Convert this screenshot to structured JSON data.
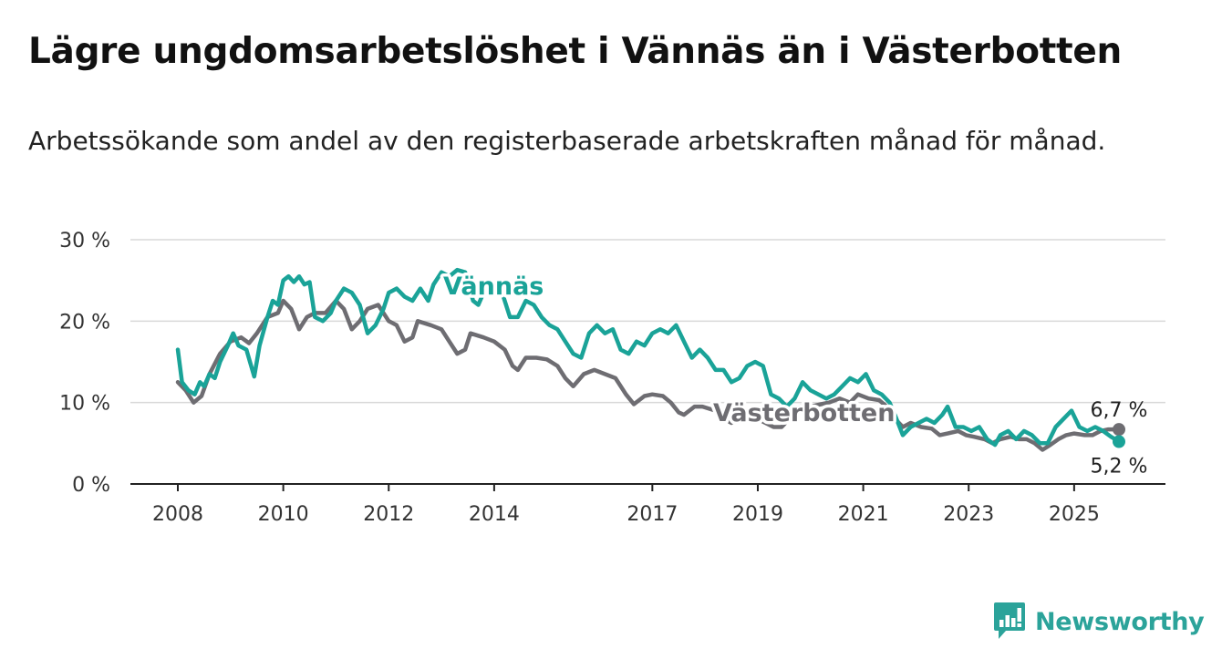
{
  "title": "Lägre ungdomsarbetslöshet i Vännäs än i Västerbotten",
  "subtitle": "Arbetssökande som andel av den registerbaserade arbetskraften månad för månad.",
  "logo": {
    "text": "Newsworthy",
    "color": "#2ba39a"
  },
  "chart_data": {
    "type": "line",
    "ylim": [
      0,
      30
    ],
    "xlim": [
      2008,
      2025.85
    ],
    "y_ticks": [
      {
        "value": 0,
        "label": "0 %"
      },
      {
        "value": 10,
        "label": "10 %"
      },
      {
        "value": 20,
        "label": "20 %"
      },
      {
        "value": 30,
        "label": "30 %"
      }
    ],
    "x_ticks": [
      {
        "value": 2008,
        "label": "2008"
      },
      {
        "value": 2010,
        "label": "2010"
      },
      {
        "value": 2012,
        "label": "2012"
      },
      {
        "value": 2014,
        "label": "2014"
      },
      {
        "value": 2017,
        "label": "2017"
      },
      {
        "value": 2019,
        "label": "2019"
      },
      {
        "value": 2021,
        "label": "2021"
      },
      {
        "value": 2023,
        "label": "2023"
      },
      {
        "value": 2025,
        "label": "2025"
      }
    ],
    "grid": true,
    "series": [
      {
        "name": "Västerbotten",
        "color": "#6e6d72",
        "end_label": "6,7 %",
        "points": [
          [
            2008.0,
            12.5
          ],
          [
            2008.15,
            11.5
          ],
          [
            2008.3,
            10.0
          ],
          [
            2008.45,
            10.8
          ],
          [
            2008.6,
            13.5
          ],
          [
            2008.8,
            16.0
          ],
          [
            2009.0,
            17.5
          ],
          [
            2009.2,
            18.0
          ],
          [
            2009.35,
            17.3
          ],
          [
            2009.5,
            18.5
          ],
          [
            2009.7,
            20.5
          ],
          [
            2009.9,
            21.0
          ],
          [
            2010.0,
            22.5
          ],
          [
            2010.15,
            21.5
          ],
          [
            2010.3,
            19.0
          ],
          [
            2010.45,
            20.5
          ],
          [
            2010.6,
            21.0
          ],
          [
            2010.8,
            21.0
          ],
          [
            2011.0,
            22.5
          ],
          [
            2011.15,
            21.5
          ],
          [
            2011.3,
            19.0
          ],
          [
            2011.45,
            20.0
          ],
          [
            2011.6,
            21.5
          ],
          [
            2011.8,
            22.0
          ],
          [
            2012.0,
            20.0
          ],
          [
            2012.15,
            19.5
          ],
          [
            2012.3,
            17.5
          ],
          [
            2012.45,
            18.0
          ],
          [
            2012.55,
            20.0
          ],
          [
            2012.8,
            19.5
          ],
          [
            2013.0,
            19.0
          ],
          [
            2013.15,
            17.5
          ],
          [
            2013.3,
            16.0
          ],
          [
            2013.45,
            16.5
          ],
          [
            2013.55,
            18.5
          ],
          [
            2013.8,
            18.0
          ],
          [
            2014.0,
            17.5
          ],
          [
            2014.2,
            16.5
          ],
          [
            2014.35,
            14.5
          ],
          [
            2014.45,
            14.0
          ],
          [
            2014.6,
            15.5
          ],
          [
            2014.8,
            15.5
          ],
          [
            2015.0,
            15.3
          ],
          [
            2015.2,
            14.5
          ],
          [
            2015.35,
            13.0
          ],
          [
            2015.5,
            12.0
          ],
          [
            2015.7,
            13.5
          ],
          [
            2015.9,
            14.0
          ],
          [
            2016.1,
            13.5
          ],
          [
            2016.3,
            13.0
          ],
          [
            2016.5,
            11.0
          ],
          [
            2016.65,
            9.8
          ],
          [
            2016.85,
            10.8
          ],
          [
            2017.0,
            11.0
          ],
          [
            2017.2,
            10.8
          ],
          [
            2017.35,
            10.0
          ],
          [
            2017.5,
            8.8
          ],
          [
            2017.6,
            8.5
          ],
          [
            2017.8,
            9.5
          ],
          [
            2017.95,
            9.5
          ],
          [
            2018.2,
            9.0
          ],
          [
            2018.35,
            8.0
          ],
          [
            2018.5,
            7.5
          ],
          [
            2018.7,
            8.5
          ],
          [
            2018.9,
            8.3
          ],
          [
            2019.05,
            7.8
          ],
          [
            2019.3,
            7.0
          ],
          [
            2019.45,
            7.0
          ],
          [
            2019.6,
            8.0
          ],
          [
            2019.8,
            9.5
          ],
          [
            2020.0,
            9.5
          ],
          [
            2020.2,
            9.8
          ],
          [
            2020.35,
            10.0
          ],
          [
            2020.55,
            10.5
          ],
          [
            2020.75,
            10.0
          ],
          [
            2020.9,
            11.0
          ],
          [
            2021.1,
            10.5
          ],
          [
            2021.3,
            10.3
          ],
          [
            2021.45,
            9.5
          ],
          [
            2021.6,
            8.0
          ],
          [
            2021.75,
            7.0
          ],
          [
            2021.9,
            7.5
          ],
          [
            2022.1,
            7.0
          ],
          [
            2022.3,
            6.8
          ],
          [
            2022.45,
            6.0
          ],
          [
            2022.6,
            6.2
          ],
          [
            2022.8,
            6.5
          ],
          [
            2022.95,
            6.0
          ],
          [
            2023.1,
            5.8
          ],
          [
            2023.3,
            5.5
          ],
          [
            2023.45,
            5.0
          ],
          [
            2023.6,
            5.5
          ],
          [
            2023.8,
            5.8
          ],
          [
            2023.95,
            5.5
          ],
          [
            2024.1,
            5.5
          ],
          [
            2024.25,
            5.0
          ],
          [
            2024.4,
            4.2
          ],
          [
            2024.55,
            4.8
          ],
          [
            2024.7,
            5.5
          ],
          [
            2024.85,
            6.0
          ],
          [
            2025.0,
            6.2
          ],
          [
            2025.2,
            6.0
          ],
          [
            2025.35,
            6.0
          ],
          [
            2025.5,
            6.5
          ],
          [
            2025.65,
            6.7
          ],
          [
            2025.85,
            6.7
          ]
        ]
      },
      {
        "name": "Vännäs",
        "color": "#1aa398",
        "end_label": "5,2 %",
        "points": [
          [
            2008.0,
            16.5
          ],
          [
            2008.08,
            12.5
          ],
          [
            2008.2,
            11.5
          ],
          [
            2008.32,
            11.0
          ],
          [
            2008.42,
            12.5
          ],
          [
            2008.5,
            12.0
          ],
          [
            2008.6,
            13.5
          ],
          [
            2008.7,
            13.0
          ],
          [
            2008.8,
            15.0
          ],
          [
            2008.95,
            17.0
          ],
          [
            2009.05,
            18.5
          ],
          [
            2009.15,
            17.0
          ],
          [
            2009.3,
            16.5
          ],
          [
            2009.45,
            13.2
          ],
          [
            2009.55,
            17.0
          ],
          [
            2009.7,
            20.5
          ],
          [
            2009.8,
            22.5
          ],
          [
            2009.9,
            22.0
          ],
          [
            2010.0,
            25.0
          ],
          [
            2010.1,
            25.5
          ],
          [
            2010.2,
            24.8
          ],
          [
            2010.3,
            25.5
          ],
          [
            2010.4,
            24.5
          ],
          [
            2010.5,
            24.8
          ],
          [
            2010.6,
            20.5
          ],
          [
            2010.75,
            20.0
          ],
          [
            2010.9,
            21.0
          ],
          [
            2011.0,
            22.5
          ],
          [
            2011.15,
            24.0
          ],
          [
            2011.3,
            23.5
          ],
          [
            2011.45,
            22.0
          ],
          [
            2011.6,
            18.5
          ],
          [
            2011.75,
            19.5
          ],
          [
            2011.9,
            21.5
          ],
          [
            2012.0,
            23.5
          ],
          [
            2012.15,
            24.0
          ],
          [
            2012.3,
            23.0
          ],
          [
            2012.45,
            22.5
          ],
          [
            2012.6,
            24.0
          ],
          [
            2012.75,
            22.5
          ],
          [
            2012.85,
            24.5
          ],
          [
            2013.0,
            26.0
          ],
          [
            2013.15,
            25.5
          ],
          [
            2013.3,
            26.3
          ],
          [
            2013.45,
            26.0
          ],
          [
            2013.6,
            22.5
          ],
          [
            2013.7,
            22.0
          ],
          [
            2013.8,
            23.5
          ],
          [
            2014.0,
            24.0
          ],
          [
            2014.15,
            23.5
          ],
          [
            2014.3,
            20.5
          ],
          [
            2014.45,
            20.5
          ],
          [
            2014.6,
            22.5
          ],
          [
            2014.75,
            22.0
          ],
          [
            2014.9,
            20.5
          ],
          [
            2015.05,
            19.5
          ],
          [
            2015.2,
            19.0
          ],
          [
            2015.35,
            17.5
          ],
          [
            2015.5,
            16.0
          ],
          [
            2015.65,
            15.5
          ],
          [
            2015.8,
            18.5
          ],
          [
            2015.95,
            19.5
          ],
          [
            2016.1,
            18.5
          ],
          [
            2016.25,
            19.0
          ],
          [
            2016.4,
            16.5
          ],
          [
            2016.55,
            16.0
          ],
          [
            2016.7,
            17.5
          ],
          [
            2016.85,
            17.0
          ],
          [
            2017.0,
            18.5
          ],
          [
            2017.15,
            19.0
          ],
          [
            2017.3,
            18.5
          ],
          [
            2017.45,
            19.5
          ],
          [
            2017.6,
            17.5
          ],
          [
            2017.75,
            15.5
          ],
          [
            2017.9,
            16.5
          ],
          [
            2018.05,
            15.5
          ],
          [
            2018.2,
            14.0
          ],
          [
            2018.35,
            14.0
          ],
          [
            2018.5,
            12.5
          ],
          [
            2018.65,
            13.0
          ],
          [
            2018.8,
            14.5
          ],
          [
            2018.95,
            15.0
          ],
          [
            2019.1,
            14.5
          ],
          [
            2019.25,
            11.0
          ],
          [
            2019.4,
            10.5
          ],
          [
            2019.55,
            9.5
          ],
          [
            2019.7,
            10.5
          ],
          [
            2019.85,
            12.5
          ],
          [
            2020.0,
            11.5
          ],
          [
            2020.15,
            11.0
          ],
          [
            2020.3,
            10.5
          ],
          [
            2020.45,
            11.0
          ],
          [
            2020.6,
            12.0
          ],
          [
            2020.75,
            13.0
          ],
          [
            2020.9,
            12.5
          ],
          [
            2021.05,
            13.5
          ],
          [
            2021.2,
            11.5
          ],
          [
            2021.35,
            11.0
          ],
          [
            2021.5,
            10.0
          ],
          [
            2021.6,
            8.5
          ],
          [
            2021.75,
            6.0
          ],
          [
            2021.9,
            7.0
          ],
          [
            2022.05,
            7.5
          ],
          [
            2022.2,
            8.0
          ],
          [
            2022.35,
            7.5
          ],
          [
            2022.5,
            8.5
          ],
          [
            2022.6,
            9.5
          ],
          [
            2022.75,
            7.0
          ],
          [
            2022.9,
            7.0
          ],
          [
            2023.05,
            6.5
          ],
          [
            2023.2,
            7.0
          ],
          [
            2023.35,
            5.5
          ],
          [
            2023.5,
            4.8
          ],
          [
            2023.6,
            6.0
          ],
          [
            2023.75,
            6.5
          ],
          [
            2023.9,
            5.5
          ],
          [
            2024.05,
            6.5
          ],
          [
            2024.2,
            6.0
          ],
          [
            2024.35,
            5.0
          ],
          [
            2024.5,
            5.0
          ],
          [
            2024.65,
            7.0
          ],
          [
            2024.8,
            8.0
          ],
          [
            2024.95,
            9.0
          ],
          [
            2025.1,
            7.0
          ],
          [
            2025.25,
            6.5
          ],
          [
            2025.4,
            7.0
          ],
          [
            2025.55,
            6.5
          ],
          [
            2025.7,
            5.8
          ],
          [
            2025.85,
            5.2
          ]
        ]
      }
    ]
  }
}
